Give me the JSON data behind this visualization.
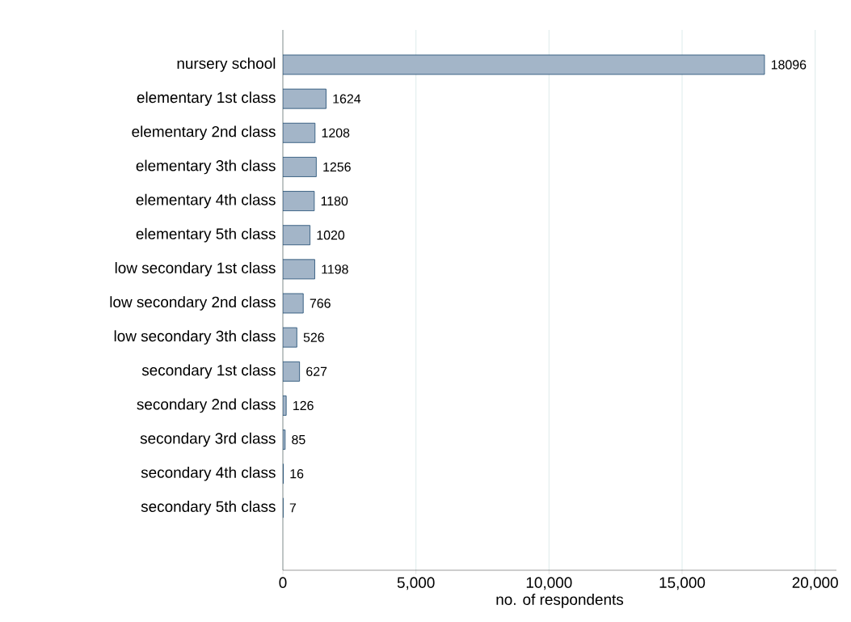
{
  "chart_data": {
    "type": "bar",
    "orientation": "horizontal",
    "xlabel": "no. of respondents",
    "categories": [
      "nursery school",
      "elementary 1st class",
      "elementary 2nd class",
      "elementary 3th class",
      "elementary 4th class",
      "elementary 5th class",
      "low secondary 1st class",
      "low secondary 2nd class",
      "low secondary 3th class",
      "secondary 1st class",
      "secondary 2nd class",
      "secondary 3rd class",
      "secondary 4th class",
      "secondary 5th class"
    ],
    "values": [
      18096,
      1624,
      1208,
      1256,
      1180,
      1020,
      1198,
      766,
      526,
      627,
      126,
      85,
      16,
      7
    ],
    "color": "#a3b5c8",
    "data_labels": true,
    "grid": "x",
    "xlim": [
      0,
      20800
    ],
    "xticks": [
      0,
      {
        "value": 5000,
        "label": "5,000"
      },
      {
        "value": 10000,
        "label": "10,000"
      },
      {
        "value": 15000,
        "label": "15,000"
      },
      {
        "value": 20000,
        "label": "20,000"
      }
    ]
  }
}
